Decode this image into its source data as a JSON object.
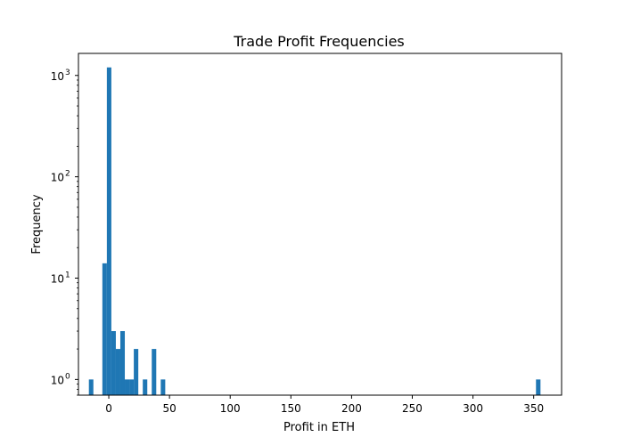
{
  "chart_data": {
    "type": "bar",
    "title": "Trade Profit Frequencies",
    "xlabel": "Profit in ETH",
    "ylabel": "Frequency",
    "xlim": [
      -25,
      373
    ],
    "ylim": [
      0.7,
      1650
    ],
    "yscale": "log",
    "bin_width": 3.7,
    "grid": false,
    "bar_color": "#1f77b4",
    "x_ticks": [
      0,
      50,
      100,
      150,
      200,
      250,
      300,
      350
    ],
    "x_tick_labels": [
      "0",
      "50",
      "100",
      "150",
      "200",
      "250",
      "300",
      "350"
    ],
    "y_major_ticks": [
      1,
      10,
      100,
      1000
    ],
    "y_tick_labels": [
      "10",
      "10",
      "10",
      "10"
    ],
    "y_tick_exponents": [
      "0",
      "1",
      "2",
      "3"
    ],
    "bins": [
      {
        "start": -16.4,
        "value": 1
      },
      {
        "start": -5.3,
        "value": 14
      },
      {
        "start": -1.6,
        "value": 1200
      },
      {
        "start": 2.1,
        "value": 3
      },
      {
        "start": 5.8,
        "value": 2
      },
      {
        "start": 9.5,
        "value": 3
      },
      {
        "start": 13.2,
        "value": 1
      },
      {
        "start": 16.9,
        "value": 1
      },
      {
        "start": 20.6,
        "value": 2
      },
      {
        "start": 28.0,
        "value": 1
      },
      {
        "start": 35.4,
        "value": 2
      },
      {
        "start": 42.8,
        "value": 1
      },
      {
        "start": 351.9,
        "value": 1
      }
    ]
  }
}
